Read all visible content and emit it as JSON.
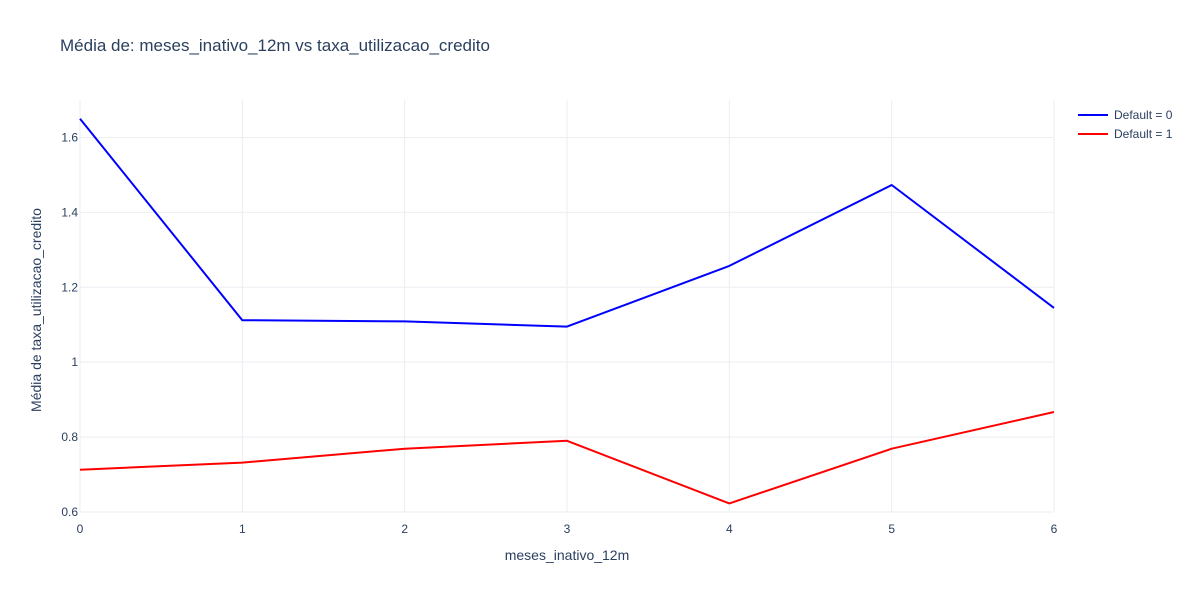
{
  "chart_data": {
    "type": "line",
    "title": "Média de: meses_inativo_12m vs taxa_utilizacao_credito",
    "xlabel": "meses_inativo_12m",
    "ylabel": "Média de taxa_utilizacao_credito",
    "x": [
      0,
      1,
      2,
      3,
      4,
      5,
      6
    ],
    "xlim": [
      0,
      6
    ],
    "ylim": [
      0.6,
      1.7
    ],
    "x_ticks": [
      0,
      1,
      2,
      3,
      4,
      5,
      6
    ],
    "x_tick_labels": [
      "0",
      "1",
      "2",
      "3",
      "4",
      "5",
      "6"
    ],
    "y_ticks": [
      0.6,
      0.8,
      1.0,
      1.2,
      1.4,
      1.6
    ],
    "y_tick_labels": [
      "0.6",
      "0.8",
      "1",
      "1.2",
      "1.4",
      "1.6"
    ],
    "grid": true,
    "legend_position": "top-right",
    "series": [
      {
        "name": "Default = 0",
        "color": "#0000ff",
        "values": [
          1.65,
          1.112,
          1.109,
          1.095,
          1.257,
          1.473,
          1.145
        ]
      },
      {
        "name": "Default = 1",
        "color": "#ff0000",
        "values": [
          0.713,
          0.732,
          0.769,
          0.79,
          0.623,
          0.769,
          0.867
        ]
      }
    ]
  }
}
